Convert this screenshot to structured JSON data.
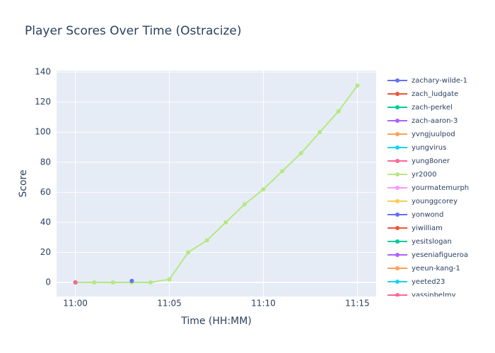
{
  "chart_data": {
    "type": "line",
    "title": "Player Scores Over Time (Ostracize)",
    "x_label": "Time (HH:MM)",
    "y_label": "Score",
    "xlim": [
      "10:59",
      "11:16"
    ],
    "xticks": [
      "11:00",
      "11:05",
      "11:10",
      "11:15"
    ],
    "ylim": [
      -9.4,
      141
    ],
    "yticks": [
      0,
      20,
      40,
      60,
      80,
      100,
      120,
      140
    ],
    "grid": true,
    "legend": "right",
    "series": [
      {
        "name": "zachary-wilde-1",
        "color": "#636efa",
        "x": [
          "11:03"
        ],
        "values": [
          1
        ]
      },
      {
        "name": "zach_ludgate",
        "color": "#EF553B",
        "x": [
          "11:00"
        ],
        "values": [
          0
        ]
      },
      {
        "name": "zach-perkel",
        "color": "#00cc96",
        "x": [
          "11:00"
        ],
        "values": [
          0
        ]
      },
      {
        "name": "zach-aaron-3",
        "color": "#ab63fa",
        "x": [
          "11:00"
        ],
        "values": [
          0
        ]
      },
      {
        "name": "yvngjuulpod",
        "color": "#FFA15A",
        "x": [
          "11:00"
        ],
        "values": [
          0
        ]
      },
      {
        "name": "yungvirus",
        "color": "#19d3f3",
        "x": [
          "11:00"
        ],
        "values": [
          0
        ]
      },
      {
        "name": "yung8oner",
        "color": "#FF6692",
        "x": [
          "11:00"
        ],
        "values": [
          0
        ]
      },
      {
        "name": "yr2000",
        "color": "#B6E880",
        "x": [
          "11:00",
          "11:01",
          "11:02",
          "11:03",
          "11:04",
          "11:05",
          "11:06",
          "11:07",
          "11:08",
          "11:09",
          "11:10",
          "11:11",
          "11:12",
          "11:13",
          "11:14",
          "11:15"
        ],
        "values": [
          0,
          0,
          0,
          0,
          0,
          2,
          20,
          28,
          40,
          52,
          62,
          74,
          86,
          100,
          114,
          131
        ]
      },
      {
        "name": "yourmatemurph",
        "color": "#FF97FF",
        "x": [
          "11:00"
        ],
        "values": [
          0
        ]
      },
      {
        "name": "younggcorey",
        "color": "#FECB52",
        "x": [
          "11:00"
        ],
        "values": [
          0
        ]
      },
      {
        "name": "yonwond",
        "color": "#636efa",
        "x": [
          "11:00"
        ],
        "values": [
          0
        ]
      },
      {
        "name": "yiwilliam",
        "color": "#EF553B",
        "x": [
          "11:00"
        ],
        "values": [
          0
        ]
      },
      {
        "name": "yesitslogan",
        "color": "#00cc96",
        "x": [
          "11:00"
        ],
        "values": [
          0
        ]
      },
      {
        "name": "yeseniafigueroa",
        "color": "#ab63fa",
        "x": [
          "11:00"
        ],
        "values": [
          0
        ]
      },
      {
        "name": "yeeun-kang-1",
        "color": "#FFA15A",
        "x": [
          "11:00"
        ],
        "values": [
          0
        ]
      },
      {
        "name": "yeeted23",
        "color": "#19d3f3",
        "x": [
          "11:00"
        ],
        "values": [
          0
        ]
      },
      {
        "name": "yassinbelmy",
        "color": "#FF6692",
        "x": [
          "11:00"
        ],
        "values": [
          0
        ]
      }
    ]
  }
}
